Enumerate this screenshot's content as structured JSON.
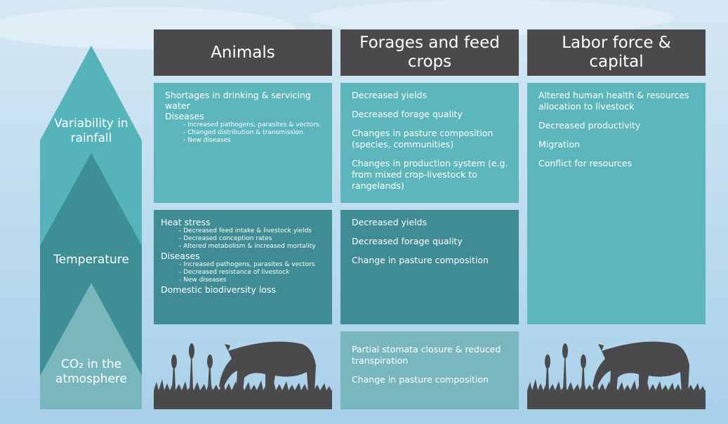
{
  "drivers": [
    "Variability in rainfall",
    "Temperature",
    "CO₂ in the atmosphere"
  ],
  "headers": [
    "Animals",
    "Forages and feed crops",
    "Labor force & capital"
  ],
  "animals": [
    [
      {
        "text": "Shortages in drinking & servicing water"
      },
      {
        "text": "Diseases",
        "sub": [
          "- Increased pathogens, parasites & vectors.",
          "- Changed distribution & transmission.",
          "- New diseases"
        ]
      }
    ],
    [
      {
        "text": "Heat stress",
        "sub": [
          "- Decreased feed intake & livestock yields",
          "- Decreased conception rates",
          "- Altered metabolism & increased mortality"
        ]
      },
      {
        "text": "Diseases",
        "sub": [
          "- Increased pathogens, parasites & vectors",
          "- Decreased resistance of livestock",
          "- New diseases"
        ]
      },
      {
        "text": "Domestic biodiversity loss"
      }
    ]
  ],
  "forages": [
    [
      {
        "text": "Decreased yields"
      },
      {
        "text": "Decreased forage quality"
      },
      {
        "text": "Changes in pasture composition (species, communities)"
      },
      {
        "text": "Changes in production system (e.g. from mixed crop-livestock to rangelands)"
      }
    ],
    [
      {
        "text": "Decreased yields"
      },
      {
        "text": "Decreased forage quality"
      },
      {
        "text": "Change in pasture composition"
      }
    ],
    [
      {
        "text": "Partial stomata closure & reduced transpiration"
      },
      {
        "text": "Change in pasture composition"
      }
    ]
  ],
  "labor": [
    [
      {
        "text": "Altered human health & resources allocation to livestock"
      },
      {
        "text": "Decreased productivity"
      },
      {
        "text": "Migration"
      },
      {
        "text": "Conflict for resources"
      }
    ]
  ]
}
